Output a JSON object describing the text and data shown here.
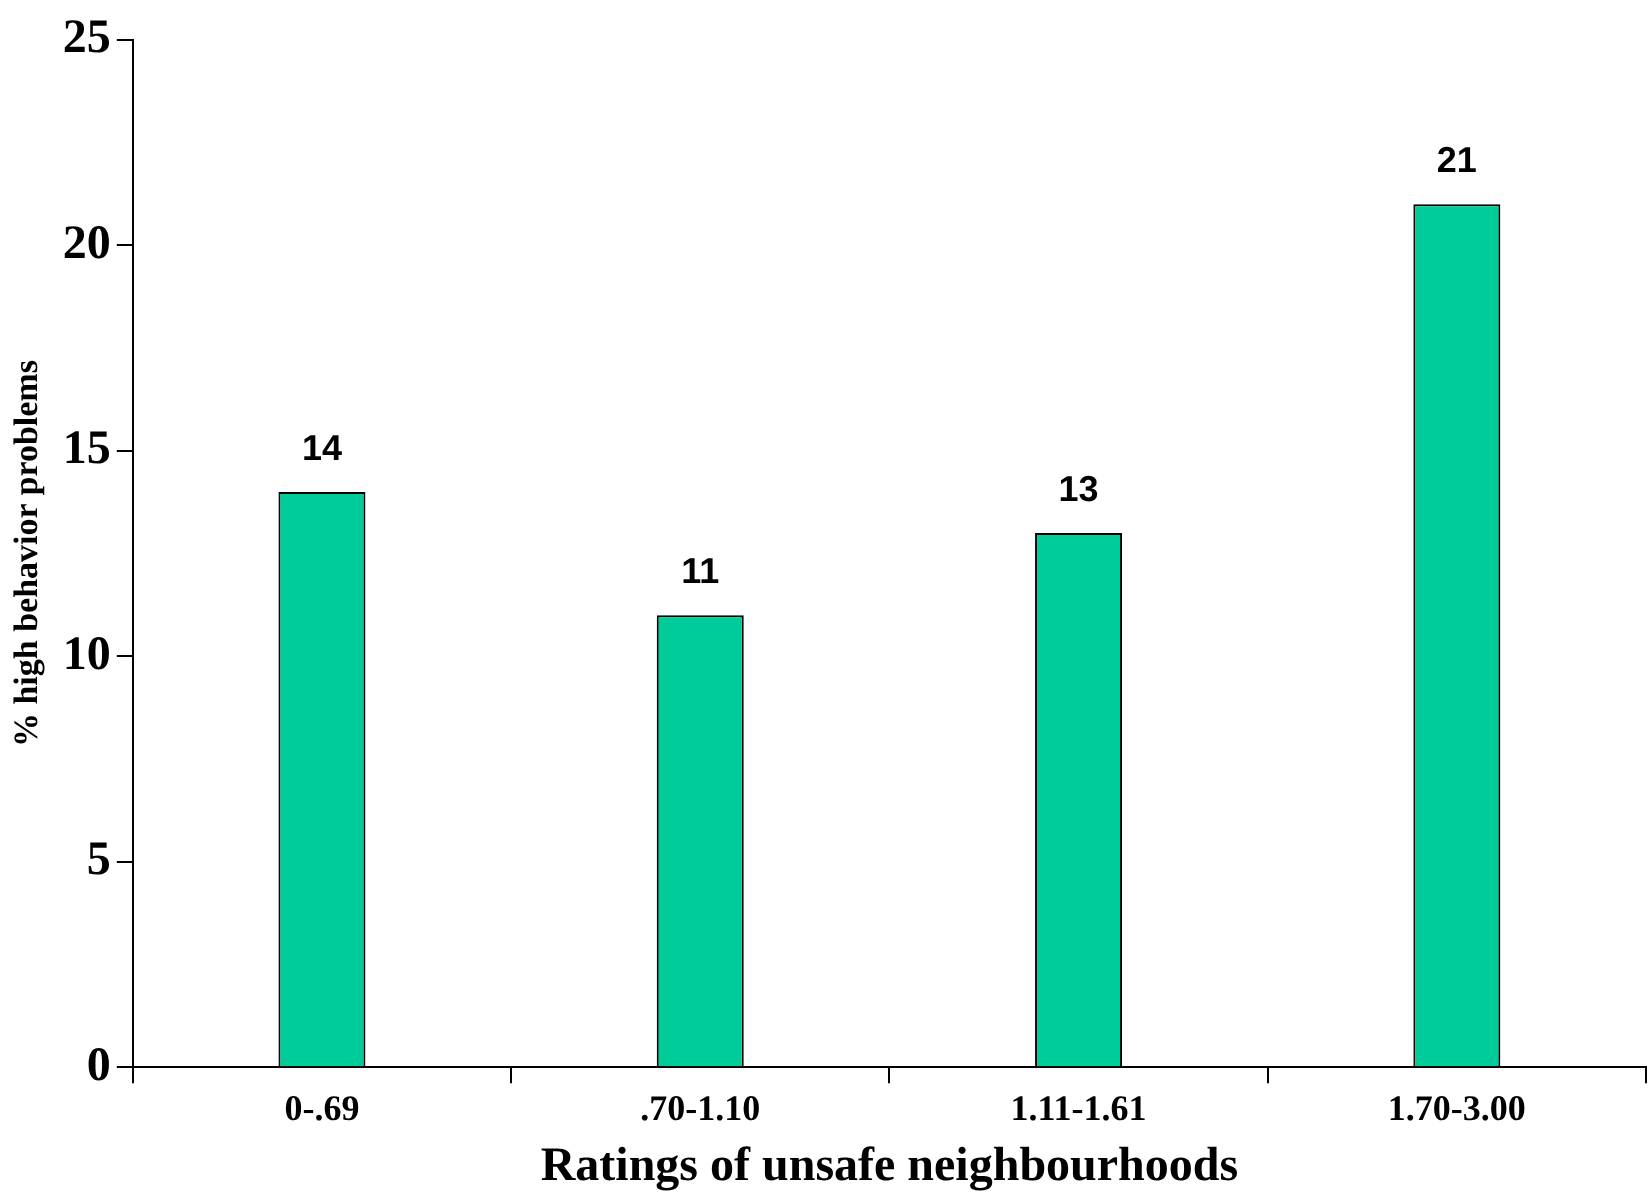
{
  "chart_data": {
    "type": "bar",
    "xlabel": "Ratings of unsafe neighbourhoods",
    "ylabel": "% high behavior problems",
    "categories": [
      "0-.69",
      ".70-1.10",
      "1.11-1.61",
      "1.70-3.00"
    ],
    "values": [
      14,
      11,
      13,
      21
    ],
    "color": "#00cc99",
    "ylim": [
      0,
      25
    ],
    "yticks": [
      0,
      5,
      10,
      15,
      20,
      25
    ],
    "grid": false,
    "legend": false,
    "data_labels": true
  }
}
